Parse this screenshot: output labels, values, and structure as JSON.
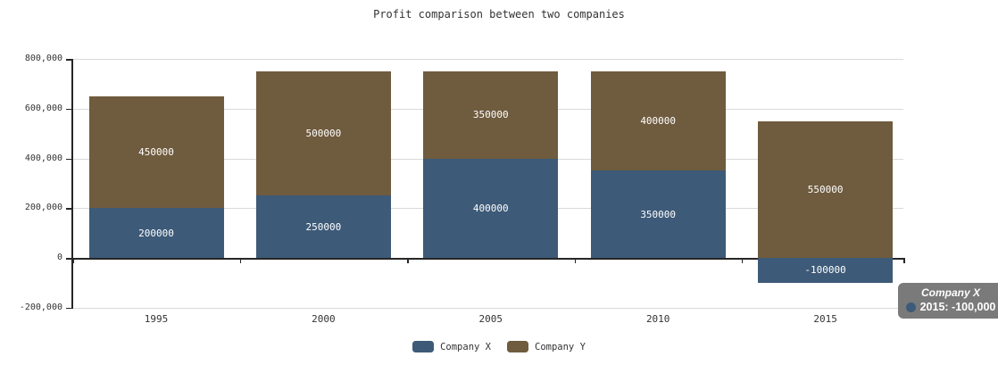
{
  "title": "Profit comparison between two companies",
  "colors": {
    "company_x": "#3d5a78",
    "company_y": "#6f5b3e",
    "grid": "#d9d9d9",
    "axis": "#262626",
    "text": "#333333",
    "bar_label": "#ffffff",
    "tooltip_bg": "#7a7a7a",
    "tooltip_text": "#ffffff"
  },
  "chart_data": {
    "type": "bar",
    "stacked": true,
    "title": "Profit comparison between two companies",
    "categories": [
      "1995",
      "2000",
      "2005",
      "2010",
      "2015"
    ],
    "series": [
      {
        "name": "Company X",
        "color": "#3d5a78",
        "values": [
          200000,
          250000,
          400000,
          350000,
          -100000
        ]
      },
      {
        "name": "Company Y",
        "color": "#6f5b3e",
        "values": [
          450000,
          500000,
          350000,
          400000,
          550000
        ]
      }
    ],
    "bar_value_labels": [
      "200000",
      "450000",
      "250000",
      "500000",
      "400000",
      "350000",
      "350000",
      "400000",
      "-100000",
      "550000"
    ],
    "ylim": [
      -200000,
      800000
    ],
    "yticks": [
      {
        "value": 800000,
        "label": "800,000"
      },
      {
        "value": 600000,
        "label": "600,000"
      },
      {
        "value": 400000,
        "label": "400,000"
      },
      {
        "value": 200000,
        "label": "200,000"
      },
      {
        "value": 0,
        "label": "0"
      },
      {
        "value": -200000,
        "label": "-200,000"
      }
    ],
    "grid": true,
    "legend_position": "bottom"
  },
  "legend": {
    "items": [
      {
        "label": "Company X",
        "color": "#3d5a78"
      },
      {
        "label": "Company Y",
        "color": "#6f5b3e"
      }
    ]
  },
  "tooltip": {
    "title": "Company X",
    "line": "2015: -100,000",
    "marker_color": "#3d5a78"
  }
}
